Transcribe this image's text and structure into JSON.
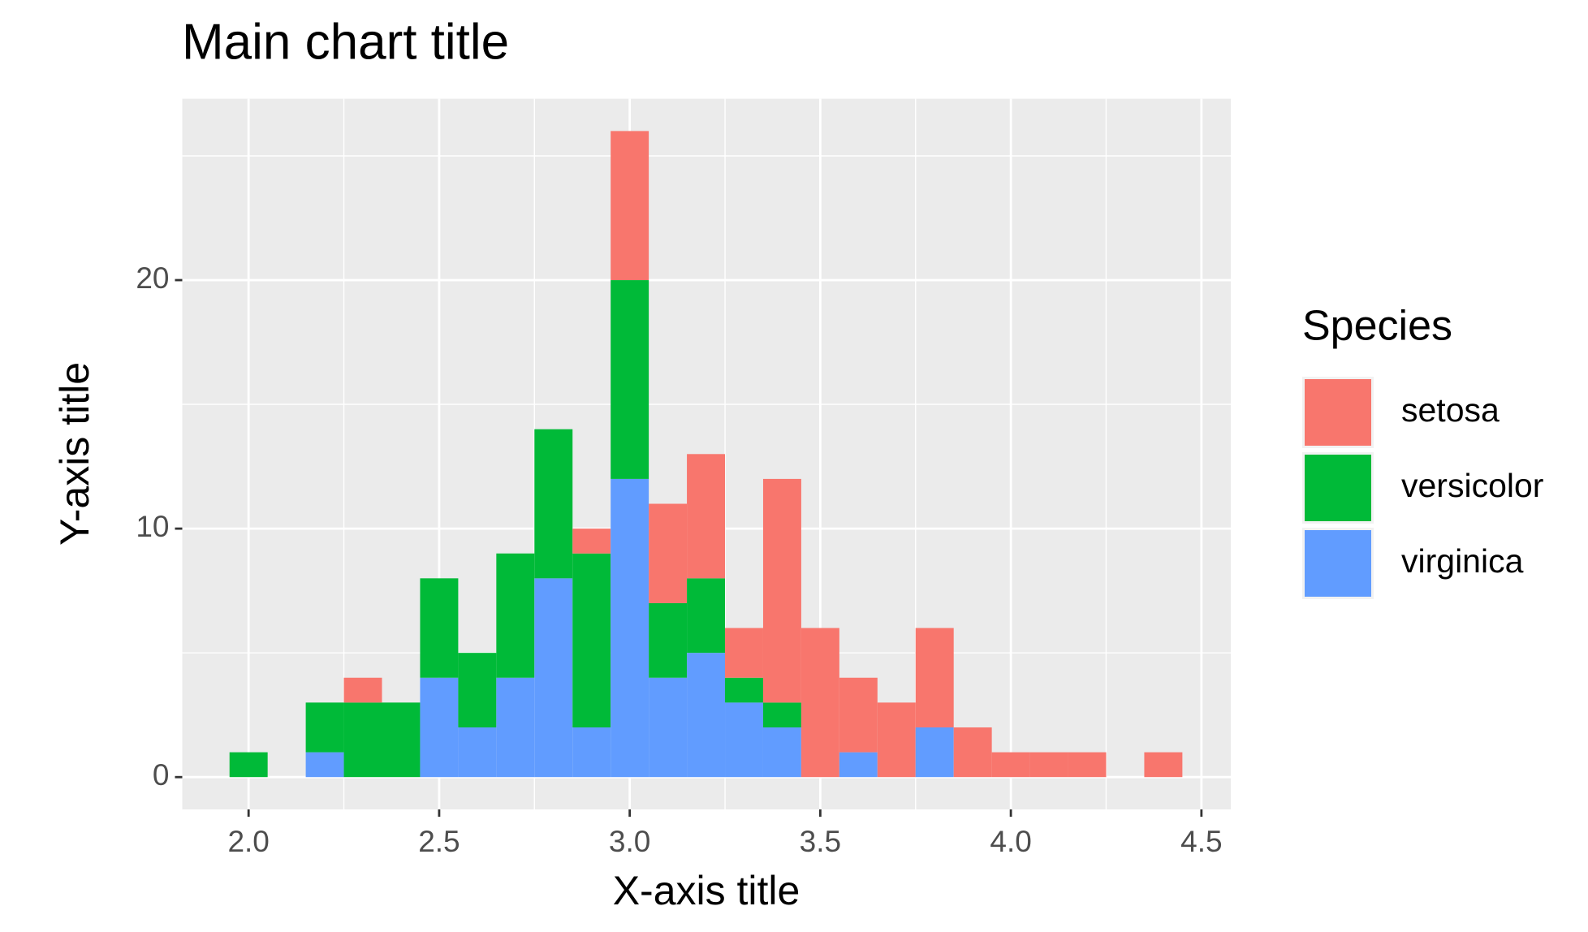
{
  "chart_data": {
    "type": "histogram",
    "title": "Main chart title",
    "x_label": "X-axis title",
    "y_label": "Y-axis title",
    "legend_title": "Species",
    "bins": [
      1.95,
      2.05,
      2.15,
      2.25,
      2.35,
      2.45,
      2.55,
      2.65,
      2.75,
      2.85,
      2.95,
      3.05,
      3.15,
      3.25,
      3.35,
      3.45,
      3.55,
      3.65,
      3.75,
      3.85,
      3.95,
      4.05,
      4.15,
      4.25,
      4.35,
      4.45
    ],
    "series": [
      {
        "name": "setosa",
        "color": "#F8766D",
        "values": [
          0,
          0,
          0,
          1,
          0,
          0,
          0,
          0,
          0,
          1,
          6,
          4,
          5,
          2,
          9,
          6,
          3,
          3,
          4,
          2,
          1,
          1,
          1,
          0,
          1
        ]
      },
      {
        "name": "versicolor",
        "color": "#00BA38",
        "values": [
          1,
          0,
          2,
          3,
          3,
          4,
          3,
          5,
          6,
          7,
          8,
          3,
          3,
          1,
          1,
          0,
          0,
          0,
          0,
          0,
          0,
          0,
          0,
          0,
          0
        ]
      },
      {
        "name": "virginica",
        "color": "#619CFF",
        "values": [
          0,
          0,
          1,
          0,
          0,
          4,
          2,
          4,
          8,
          2,
          12,
          4,
          5,
          3,
          2,
          0,
          1,
          0,
          2,
          0,
          0,
          0,
          0,
          0,
          0
        ]
      }
    ],
    "stacked": true,
    "xlim": [
      1.826,
      4.577
    ],
    "ylim": [
      -1.3,
      27.3
    ],
    "xticks": [
      {
        "value": 2,
        "label": "2.0"
      },
      {
        "value": 2.5,
        "label": "2.5"
      },
      {
        "value": 3,
        "label": "3.0"
      },
      {
        "value": 3.5,
        "label": "3.5"
      },
      {
        "value": 4,
        "label": "4.0"
      },
      {
        "value": 4.5,
        "label": "4.5"
      }
    ],
    "yticks": [
      0,
      10,
      20
    ],
    "grid": true,
    "legend_position": "right"
  }
}
